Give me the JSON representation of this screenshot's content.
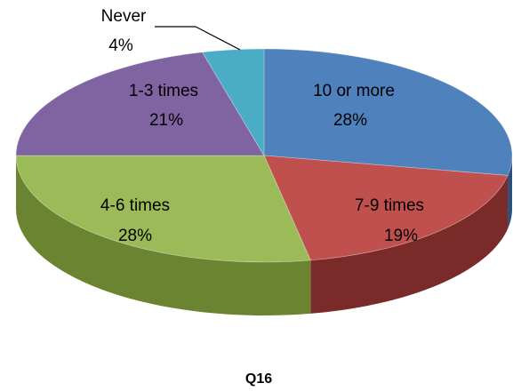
{
  "chart_data": {
    "type": "pie",
    "title": "Q16",
    "slices": [
      {
        "label": "10 or more",
        "value": 28,
        "value_label": "28%",
        "color": "#4F81BD",
        "side": "#2E4F78"
      },
      {
        "label": "7-9 times",
        "value": 19,
        "value_label": "19%",
        "color": "#C0504D",
        "side": "#7A2A28"
      },
      {
        "label": "4-6 times",
        "value": 28,
        "value_label": "28%",
        "color": "#9BBB59",
        "side": "#6A8432"
      },
      {
        "label": "1-3 times",
        "value": 21,
        "value_label": "21%",
        "color": "#8064A2",
        "side": "#54406E"
      },
      {
        "label": "Never",
        "value": 4,
        "value_label": "4%",
        "color": "#4BACC6",
        "side": "#2D7587"
      }
    ]
  }
}
